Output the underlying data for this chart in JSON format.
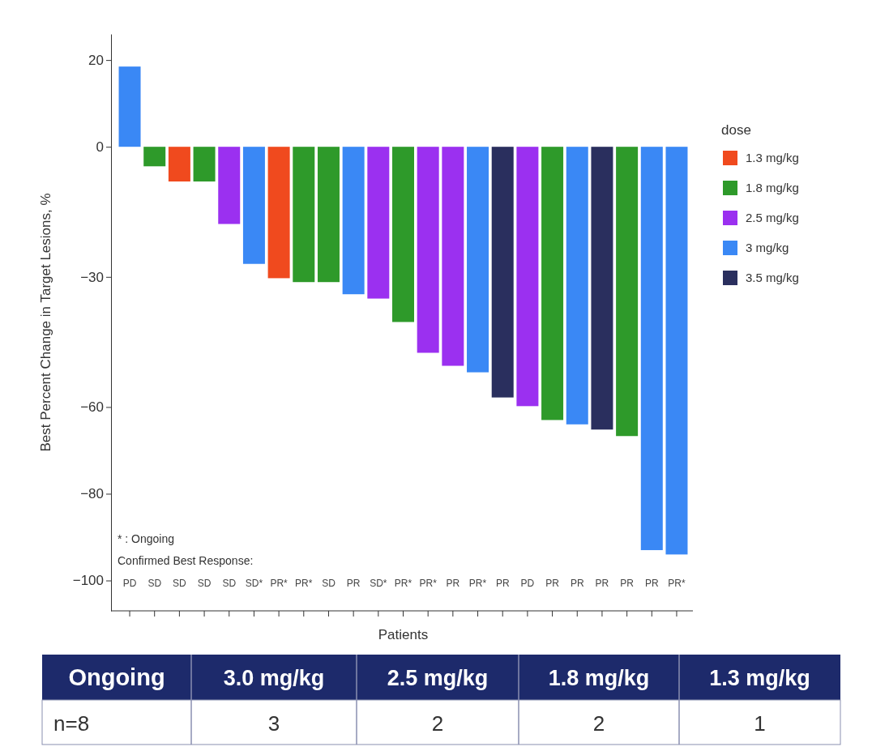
{
  "chart_data": [
    {
      "type": "bar",
      "ylabel": "Best Percent Change in Target Lesions, %",
      "xlabel": "Patients",
      "legend_title": "dose",
      "legend": "right",
      "categories": [
        "PD",
        "SD",
        "SD",
        "SD",
        "SD",
        "SD*",
        "PR*",
        "PR*",
        "SD",
        "PR",
        "SD*",
        "PR*",
        "PR*",
        "PR",
        "PR*",
        "PR",
        "PD",
        "PR",
        "PR",
        "PR",
        "PR",
        "PR",
        "PR*"
      ],
      "series": [
        {
          "name": "1.3 mg/kg",
          "color": "#f04a1e",
          "values": [
            null,
            null,
            -8,
            null,
            null,
            null,
            -30.3,
            null,
            null,
            null,
            null,
            null,
            null,
            null,
            null,
            null,
            null,
            null,
            null,
            null,
            null,
            null,
            null
          ]
        },
        {
          "name": "1.8 mg/kg",
          "color": "#2e9a2a",
          "values": [
            null,
            -4.5,
            null,
            -8,
            null,
            null,
            null,
            -31.2,
            -31.2,
            null,
            null,
            -40.4,
            null,
            null,
            null,
            null,
            null,
            -63,
            null,
            null,
            -66.7,
            null,
            null
          ]
        },
        {
          "name": "2.5 mg/kg",
          "color": "#9b30f0",
          "values": [
            null,
            null,
            null,
            null,
            -17.8,
            null,
            null,
            null,
            null,
            null,
            -35,
            null,
            -47.5,
            -50.5,
            null,
            null,
            -59.8,
            null,
            null,
            null,
            null,
            null,
            null
          ]
        },
        {
          "name": "3 mg/kg",
          "color": "#3a88f5",
          "values": [
            18.5,
            null,
            null,
            null,
            null,
            -27,
            null,
            null,
            null,
            -34,
            null,
            null,
            null,
            null,
            -52,
            null,
            null,
            null,
            -64,
            null,
            null,
            -93,
            -94
          ]
        },
        {
          "name": "3.5 mg/kg",
          "color": "#2a2f5e",
          "values": [
            null,
            null,
            null,
            null,
            null,
            null,
            null,
            null,
            null,
            null,
            null,
            null,
            null,
            null,
            null,
            -57.8,
            null,
            null,
            null,
            -65.2,
            null,
            null,
            null
          ]
        }
      ],
      "ylim": [
        -107,
        26
      ],
      "yticks": [
        20,
        0,
        -30,
        -60,
        -80,
        -100
      ],
      "annotations": [
        "* : Ongoing",
        "Confirmed Best Response:"
      ]
    },
    {
      "type": "other",
      "title": "Ongoing",
      "categories": [
        "3.0 mg/kg",
        "2.5 mg/kg",
        "1.8 mg/kg",
        "1.3 mg/kg"
      ],
      "values": [
        3,
        2,
        2,
        1
      ],
      "data_labels": true,
      "annotations": [
        "n=8"
      ]
    }
  ]
}
